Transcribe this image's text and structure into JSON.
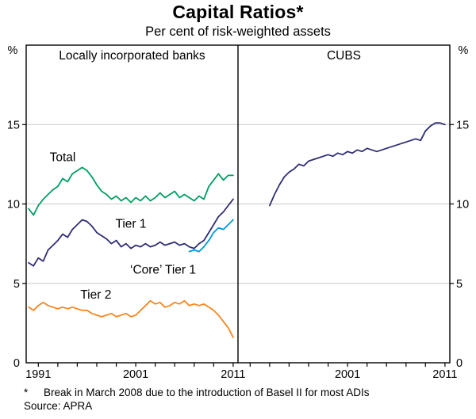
{
  "title": "Capital Ratios*",
  "subtitle": "Per cent of risk-weighted assets",
  "footnote": {
    "marker": "*",
    "text": "Break in March 2008 due to the introduction of Basel II for most ADIs"
  },
  "source": "Source: APRA",
  "chart_data": {
    "type": "line",
    "unit": "%",
    "ylim": [
      0,
      20
    ],
    "yticks": [
      0,
      5,
      10,
      15
    ],
    "grid_yticks": [
      5,
      10,
      15
    ],
    "xlim": [
      1989.75,
      2011.5
    ],
    "xtick_step": 2,
    "xtick_first": 1991,
    "xtick_last": 2011,
    "grid_color": "#c8c8c8",
    "axis_color": "#000000",
    "panels": [
      {
        "title": "Locally incorporated banks",
        "xtick_labels": [
          {
            "year": 1991,
            "label": "1991"
          },
          {
            "year": 2001,
            "label": "2001"
          },
          {
            "year": 2011,
            "label": "2011"
          }
        ],
        "series": [
          {
            "name": "Total",
            "label": "Total",
            "color": "#009e60",
            "label_pos": [
              1993.5,
              12.7
            ],
            "x": [
              1990,
              1990.5,
              1991,
              1991.5,
              1992,
              1992.5,
              1993,
              1993.5,
              1994,
              1994.5,
              1995,
              1995.5,
              1996,
              1996.5,
              1997,
              1997.5,
              1998,
              1998.5,
              1999,
              1999.5,
              2000,
              2000.5,
              2001,
              2001.5,
              2002,
              2002.5,
              2003,
              2003.5,
              2004,
              2004.5,
              2005,
              2005.5,
              2006,
              2006.5,
              2007,
              2007.5,
              2008,
              2008.5,
              2009,
              2009.5,
              2010,
              2010.5,
              2011
            ],
            "y": [
              9.7,
              9.3,
              9.9,
              10.3,
              10.6,
              10.9,
              11.1,
              11.6,
              11.4,
              11.9,
              12.1,
              12.3,
              12.1,
              11.7,
              11.2,
              10.8,
              10.6,
              10.3,
              10.5,
              10.2,
              10.4,
              10.1,
              10.4,
              10.2,
              10.5,
              10.2,
              10.4,
              10.7,
              10.4,
              10.6,
              10.8,
              10.4,
              10.6,
              10.4,
              10.2,
              10.5,
              10.3,
              11.1,
              11.5,
              11.9,
              11.5,
              11.8,
              11.8
            ]
          },
          {
            "name": "Tier 1",
            "label": "Tier 1",
            "color": "#2e2d75",
            "label_pos": [
              2000.5,
              8.5
            ],
            "x": [
              1990,
              1990.5,
              1991,
              1991.5,
              1992,
              1992.5,
              1993,
              1993.5,
              1994,
              1994.5,
              1995,
              1995.5,
              1996,
              1996.5,
              1997,
              1997.5,
              1998,
              1998.5,
              1999,
              1999.5,
              2000,
              2000.5,
              2001,
              2001.5,
              2002,
              2002.5,
              2003,
              2003.5,
              2004,
              2004.5,
              2005,
              2005.5,
              2006,
              2006.5,
              2007,
              2007.5,
              2008,
              2008.5,
              2009,
              2009.5,
              2010,
              2010.5,
              2011
            ],
            "y": [
              6.3,
              6.1,
              6.6,
              6.4,
              7.1,
              7.4,
              7.7,
              8.1,
              7.9,
              8.4,
              8.7,
              9.0,
              8.9,
              8.6,
              8.2,
              8.0,
              7.8,
              7.5,
              7.7,
              7.3,
              7.5,
              7.2,
              7.4,
              7.3,
              7.5,
              7.3,
              7.4,
              7.6,
              7.4,
              7.5,
              7.6,
              7.4,
              7.5,
              7.3,
              7.2,
              7.5,
              7.7,
              8.2,
              8.7,
              9.2,
              9.5,
              9.9,
              10.3
            ]
          },
          {
            "name": "Core Tier 1",
            "label": "‘Core’ Tier 1",
            "color": "#0099d8",
            "label_pos": [
              2003.8,
              5.6
            ],
            "x": [
              2006.5,
              2007,
              2007.5,
              2008,
              2008.5,
              2009,
              2009.5,
              2010,
              2010.5,
              2011
            ],
            "y": [
              7.0,
              7.1,
              7.0,
              7.3,
              7.7,
              8.2,
              8.5,
              8.4,
              8.7,
              9.0
            ]
          },
          {
            "name": "Tier 2",
            "label": "Tier 2",
            "color": "#f6861f",
            "label_pos": [
              1996.9,
              4.05
            ],
            "x": [
              1990,
              1990.5,
              1991,
              1991.5,
              1992,
              1992.5,
              1993,
              1993.5,
              1994,
              1994.5,
              1995,
              1995.5,
              1996,
              1996.5,
              1997,
              1997.5,
              1998,
              1998.5,
              1999,
              1999.5,
              2000,
              2000.5,
              2001,
              2001.5,
              2002,
              2002.5,
              2003,
              2003.5,
              2004,
              2004.5,
              2005,
              2005.5,
              2006,
              2006.5,
              2007,
              2007.5,
              2008,
              2008.5,
              2009,
              2009.5,
              2010,
              2010.5,
              2011
            ],
            "y": [
              3.5,
              3.3,
              3.6,
              3.8,
              3.6,
              3.5,
              3.4,
              3.5,
              3.4,
              3.5,
              3.4,
              3.3,
              3.3,
              3.1,
              3.0,
              2.9,
              3.0,
              3.1,
              2.9,
              3.0,
              3.1,
              2.9,
              3.0,
              3.3,
              3.6,
              3.9,
              3.7,
              3.8,
              3.5,
              3.6,
              3.8,
              3.7,
              3.9,
              3.6,
              3.7,
              3.6,
              3.7,
              3.5,
              3.3,
              3.0,
              2.6,
              2.2,
              1.6
            ]
          }
        ]
      },
      {
        "title": "CUBS",
        "xtick_labels": [
          {
            "year": 2001,
            "label": "2001"
          },
          {
            "year": 2011,
            "label": "2011"
          }
        ],
        "series": [
          {
            "name": "CUBS",
            "label": "",
            "color": "#2e2d75",
            "label_pos": [
              2000,
              16
            ],
            "x": [
              1993,
              1993.5,
              1994,
              1994.5,
              1995,
              1995.5,
              1996,
              1996.5,
              1997,
              1997.5,
              1998,
              1998.5,
              1999,
              1999.5,
              2000,
              2000.5,
              2001,
              2001.5,
              2002,
              2002.5,
              2003,
              2003.5,
              2004,
              2004.5,
              2005,
              2005.5,
              2006,
              2006.5,
              2007,
              2007.5,
              2008,
              2008.5,
              2009,
              2009.5,
              2010,
              2010.5,
              2011
            ],
            "y": [
              9.9,
              10.6,
              11.2,
              11.7,
              12.0,
              12.2,
              12.5,
              12.4,
              12.7,
              12.8,
              12.9,
              13.0,
              13.1,
              13.0,
              13.2,
              13.1,
              13.3,
              13.2,
              13.4,
              13.3,
              13.5,
              13.4,
              13.3,
              13.4,
              13.5,
              13.6,
              13.7,
              13.8,
              13.9,
              14.0,
              14.1,
              14.0,
              14.6,
              14.9,
              15.1,
              15.1,
              15.0
            ]
          }
        ]
      }
    ]
  }
}
